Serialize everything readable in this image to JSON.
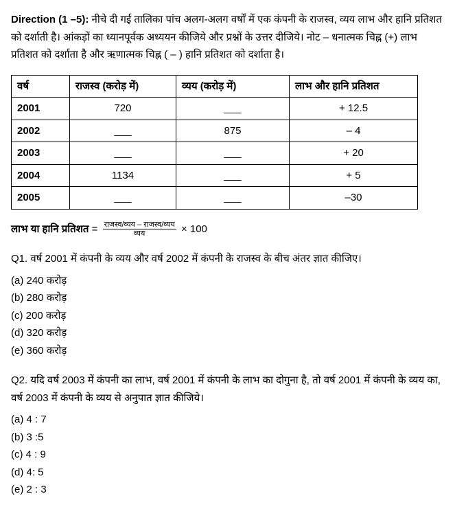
{
  "direction": {
    "label": "Direction (1 –5):",
    "text": " नीचे दी गई तालिका पांच अलग-अलग वर्षों में एक कंपनी के राजस्व, व्यय लाभ और हानि प्रतिशत को दर्शाती है। आंकड़ों का ध्यानपूर्वक अध्ययन कीजिये और प्रश्नों के उत्तर दीजिये। नोट – धनात्मक चिह्न (+) लाभ प्रतिशत को दर्शाता है और ऋणात्मक चिह्न  ( – )  हानि प्रतिशत को दर्शाता है।"
  },
  "table": {
    "headers": {
      "year": "वर्ष",
      "revenue": "राजस्व (करोड़ में)",
      "expense": "व्यय (करोड़ में)",
      "plpct": "लाभ और हानि प्रतिशत"
    },
    "rows": [
      {
        "year": "2001",
        "revenue": "720",
        "expense": "___",
        "plpct": "+ 12.5"
      },
      {
        "year": "2002",
        "revenue": "___",
        "expense": "875",
        "plpct": "– 4"
      },
      {
        "year": "2003",
        "revenue": "___",
        "expense": "___",
        "plpct": "+ 20"
      },
      {
        "year": "2004",
        "revenue": "1134",
        "expense": "___",
        "plpct": "+ 5"
      },
      {
        "year": "2005",
        "revenue": "___",
        "expense": "___",
        "plpct": "–30"
      }
    ],
    "col_widths": {
      "year": 68,
      "revenue": 138,
      "expense": 148,
      "plpct": 170
    }
  },
  "formula": {
    "label": "लाभ या हानि प्रतिशत",
    "equals": " = ",
    "num": "राजस्व/व्यय  – राजस्व/व्यय",
    "den": "व्यय",
    "tail": " × 100"
  },
  "q1": {
    "text": "Q1. वर्ष 2001 में कंपनी के व्यय और वर्ष 2002 में कंपनी के राजस्व के बीच अंतर ज्ञात कीजिए।",
    "a": "(a) 240 करोड़",
    "b": "(b) 280 करोड़",
    "c": "(c) 200 करोड़",
    "d": "(d) 320 करोड़",
    "e": "(e) 360 करोड़"
  },
  "q2": {
    "text": "Q2.  यदि वर्ष 2003 में कंपनी का लाभ, वर्ष 2001 में कंपनी के लाभ का दोगुना है, तो वर्ष 2001 में कंपनी के व्यय का, वर्ष 2003 में कंपनी के व्यय से अनुपात ज्ञात कीजिये।",
    "a": "(a) 4 : 7",
    "b": "(b) 3 :5",
    "c": "(c) 4 : 9",
    "d": "(d) 4: 5",
    "e": "(e) 2 : 3"
  }
}
